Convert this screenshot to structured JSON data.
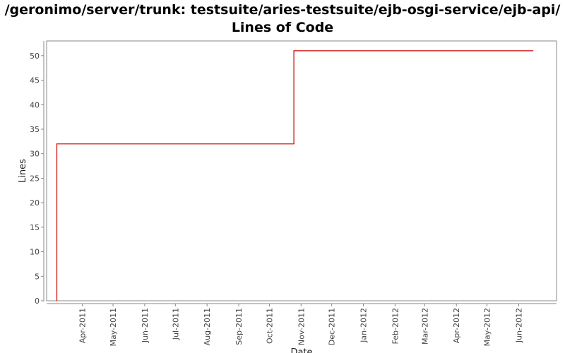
{
  "chart_data": {
    "type": "line",
    "title_line1": "/geronimo/server/trunk: testsuite/aries-testsuite/ejb-osgi-service/ejb-api/",
    "title_line2": "Lines of Code",
    "xlabel": "Date",
    "ylabel": "Lines",
    "ylim": [
      0,
      53
    ],
    "yticks": [
      0,
      5,
      10,
      15,
      20,
      25,
      30,
      35,
      40,
      45,
      50
    ],
    "xlim": [
      "2011-02-25",
      "2012-07-08"
    ],
    "xticks": [
      {
        "date": "2011-04-01",
        "label": "Apr-2011"
      },
      {
        "date": "2011-05-01",
        "label": "May-2011"
      },
      {
        "date": "2011-06-01",
        "label": "Jun-2011"
      },
      {
        "date": "2011-07-01",
        "label": "Jul-2011"
      },
      {
        "date": "2011-08-01",
        "label": "Aug-2011"
      },
      {
        "date": "2011-09-01",
        "label": "Sep-2011"
      },
      {
        "date": "2011-10-01",
        "label": "Oct-2011"
      },
      {
        "date": "2011-11-01",
        "label": "Nov-2011"
      },
      {
        "date": "2011-12-01",
        "label": "Dec-2011"
      },
      {
        "date": "2012-01-01",
        "label": "Jan-2012"
      },
      {
        "date": "2012-02-01",
        "label": "Feb-2012"
      },
      {
        "date": "2012-03-01",
        "label": "Mar-2012"
      },
      {
        "date": "2012-04-01",
        "label": "Apr-2012"
      },
      {
        "date": "2012-05-01",
        "label": "May-2012"
      },
      {
        "date": "2012-06-01",
        "label": "Jun-2012"
      }
    ],
    "series": [
      {
        "color": "#cc0000",
        "step": true,
        "points": [
          {
            "x": "2011-03-07",
            "y": 0
          },
          {
            "x": "2011-03-07",
            "y": 32
          },
          {
            "x": "2011-10-25",
            "y": 32
          },
          {
            "x": "2011-10-25",
            "y": 51
          },
          {
            "x": "2012-06-15",
            "y": 51
          }
        ]
      }
    ],
    "grid": false,
    "legend": "none"
  }
}
